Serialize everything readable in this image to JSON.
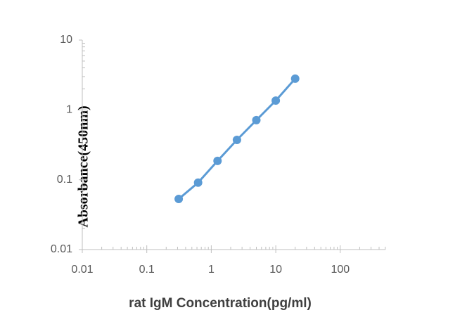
{
  "chart_data": {
    "type": "line",
    "x_label": "rat IgM Concentration(pg/ml)",
    "y_label": "Absorbance(450nm)",
    "xscale": "log",
    "yscale": "log",
    "x": [
      0.3125,
      0.625,
      1.25,
      2.5,
      5,
      10,
      20
    ],
    "series": [
      {
        "name": "Absorbance",
        "color": "#5b9bd5",
        "values": [
          0.053,
          0.091,
          0.186,
          0.372,
          0.713,
          1.36,
          2.8
        ]
      }
    ],
    "xlim": [
      0.01,
      500
    ],
    "xticks": [
      0.01,
      0.1,
      1,
      10,
      100
    ],
    "ylim": [
      0.01,
      10
    ],
    "yticks": [
      0.01,
      0.1,
      1,
      10
    ]
  }
}
